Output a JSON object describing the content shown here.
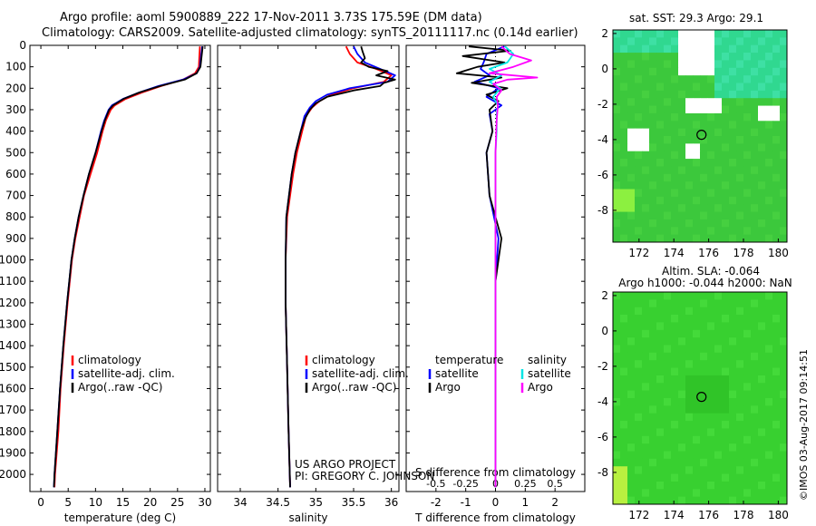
{
  "title": {
    "line1": "Argo profile: aoml 5900889_222 17-Nov-2011 3.73S 175.59E (DM data)",
    "line2": "Climatology: CARS2009. Satellite-adjusted climatology: synTS_20111117.nc (0.14d earlier)"
  },
  "project": {
    "line1": "US ARGO PROJECT",
    "line2": "PI: GREGORY C. JOHNSON"
  },
  "footer_stamp": "©IMOS 03-Aug-2017 09:14:51",
  "colors": {
    "climatology": "#ff0000",
    "satellite": "#0000ff",
    "argo": "#000000",
    "sal_satellite": "#00e5e5",
    "sal_argo": "#ff00ff"
  },
  "chart_data": [
    {
      "id": "temperature",
      "type": "line",
      "xlabel": "temperature (deg C)",
      "ylabel": "",
      "xlim": [
        -2,
        31
      ],
      "ylim": [
        2080,
        0
      ],
      "xticks": [
        0,
        5,
        10,
        15,
        20,
        25,
        30
      ],
      "yticks": [
        0,
        100,
        200,
        300,
        400,
        500,
        600,
        700,
        800,
        900,
        1000,
        1100,
        1200,
        1300,
        1400,
        1500,
        1600,
        1700,
        1800,
        1900,
        2000
      ],
      "legend": [
        "climatology",
        "satellite-adj. clim.",
        "Argo(..raw -QC)"
      ],
      "series": [
        {
          "name": "climatology",
          "color": "#ff0000",
          "depth": [
            5,
            50,
            100,
            130,
            160,
            190,
            220,
            250,
            280,
            300,
            350,
            400,
            500,
            600,
            700,
            800,
            900,
            1000,
            1200,
            1400,
            1600,
            1800,
            2000,
            2060
          ],
          "values": [
            29.1,
            29.0,
            28.9,
            28.2,
            26,
            22,
            18.5,
            15.5,
            13.5,
            12.8,
            11.9,
            11.3,
            10.3,
            9.1,
            7.9,
            7.1,
            6.3,
            5.7,
            4.9,
            4.2,
            3.6,
            3.2,
            2.6,
            2.5
          ]
        },
        {
          "name": "satellite-adj. clim.",
          "color": "#0000ff",
          "depth": [
            5,
            50,
            100,
            130,
            160,
            190,
            220,
            250,
            280,
            300,
            350,
            400,
            500,
            600,
            700,
            800,
            900,
            1000,
            1200,
            1400,
            1600,
            1800,
            2000,
            2060
          ],
          "values": [
            29.5,
            29.3,
            29.1,
            28.5,
            26,
            21.5,
            18,
            15,
            13.0,
            12.4,
            11.6,
            11.0,
            10.0,
            8.8,
            7.8,
            6.9,
            6.2,
            5.6,
            4.8,
            4.1,
            3.5,
            3.0,
            2.5,
            2.4
          ]
        },
        {
          "name": "Argo(..raw -QC)",
          "color": "#000000",
          "depth": [
            5,
            50,
            100,
            130,
            160,
            190,
            220,
            250,
            280,
            300,
            350,
            400,
            500,
            600,
            700,
            800,
            900,
            1000,
            1200,
            1400,
            1600,
            1800,
            2000,
            2060
          ],
          "values": [
            29.6,
            29.4,
            29.2,
            28.5,
            26.3,
            21.8,
            18,
            15.1,
            13.2,
            12.5,
            11.7,
            11.1,
            10.0,
            8.8,
            7.8,
            6.9,
            6.2,
            5.6,
            4.8,
            4.1,
            3.5,
            3.0,
            2.5,
            2.4
          ]
        }
      ]
    },
    {
      "id": "salinity",
      "type": "line",
      "xlabel": "salinity",
      "ylabel": "",
      "xlim": [
        33.7,
        36.1
      ],
      "ylim": [
        2080,
        0
      ],
      "xticks": [
        34,
        34.5,
        35,
        35.5,
        36
      ],
      "legend": [
        "climatology",
        "satellite-adj. clim.",
        "Argo(..raw -QC)"
      ],
      "series": [
        {
          "name": "climatology",
          "color": "#ff0000",
          "depth": [
            5,
            40,
            80,
            110,
            140,
            170,
            200,
            230,
            260,
            290,
            330,
            400,
            500,
            600,
            800,
            1000,
            1200,
            1500,
            1800,
            2060
          ],
          "values": [
            35.4,
            35.45,
            35.55,
            35.8,
            36.0,
            35.9,
            35.5,
            35.2,
            35.05,
            34.95,
            34.87,
            34.82,
            34.75,
            34.7,
            34.62,
            34.6,
            34.6,
            34.62,
            34.64,
            34.66
          ]
        },
        {
          "name": "satellite-adj. clim.",
          "color": "#0000ff",
          "depth": [
            5,
            40,
            80,
            110,
            140,
            170,
            200,
            230,
            260,
            290,
            330,
            400,
            500,
            600,
            800,
            1000,
            1200,
            1500,
            1800,
            2060
          ],
          "values": [
            35.5,
            35.55,
            35.65,
            35.85,
            36.05,
            35.95,
            35.45,
            35.15,
            35.0,
            34.92,
            34.85,
            34.8,
            34.73,
            34.68,
            34.61,
            34.6,
            34.6,
            34.62,
            34.64,
            34.66
          ]
        },
        {
          "name": "Argo(..raw -QC)",
          "color": "#000000",
          "depth": [
            5,
            30,
            60,
            80,
            100,
            120,
            140,
            160,
            175,
            190,
            210,
            240,
            270,
            300,
            340,
            400,
            500,
            600,
            800,
            1000,
            1200,
            1500,
            1800,
            2060
          ],
          "values": [
            35.6,
            35.62,
            35.65,
            35.6,
            35.7,
            35.95,
            35.8,
            36.05,
            35.9,
            35.85,
            35.5,
            35.15,
            35.0,
            34.92,
            34.86,
            34.8,
            34.73,
            34.68,
            34.61,
            34.6,
            34.6,
            34.62,
            34.64,
            34.66
          ]
        }
      ]
    },
    {
      "id": "difference",
      "type": "line",
      "top_xlabel": "S difference from climatology",
      "xlabel": "T difference from climatology",
      "xlim": [
        -3,
        3
      ],
      "ylim": [
        2080,
        0
      ],
      "xticks": [
        -2,
        -1,
        0,
        1,
        2
      ],
      "top_xticks": [
        -0.5,
        -0.25,
        0,
        0.25,
        0.5
      ],
      "legend_temperature": {
        "title": "temperature",
        "items": [
          "satellite",
          "Argo"
        ]
      },
      "legend_salinity": {
        "title": "salinity",
        "items": [
          "satellite",
          "Argo"
        ]
      },
      "series": [
        {
          "name": "T satellite",
          "color": "#0000ff",
          "depth": [
            5,
            40,
            80,
            110,
            140,
            170,
            200,
            240,
            280,
            320,
            400,
            500,
            700,
            900,
            1100,
            1400,
            1700,
            2060
          ],
          "values": [
            0.3,
            -0.3,
            -0.4,
            -0.5,
            -0.2,
            -0.7,
            0.1,
            -0.3,
            0.2,
            -0.2,
            -0.1,
            -0.3,
            -0.2,
            0.1,
            0,
            0,
            0,
            0
          ]
        },
        {
          "name": "T Argo",
          "color": "#000000",
          "depth": [
            5,
            25,
            50,
            80,
            100,
            130,
            150,
            175,
            200,
            230,
            260,
            300,
            400,
            500,
            700,
            900,
            1000,
            1100,
            1400,
            1700,
            2060
          ],
          "values": [
            -0.9,
            0.5,
            -1.1,
            0.3,
            -0.6,
            -1.3,
            0.2,
            -0.8,
            0.4,
            -0.3,
            0.1,
            -0.2,
            -0.1,
            -0.3,
            -0.2,
            0.2,
            0.1,
            0,
            0,
            0,
            0
          ]
        },
        {
          "name": "S satellite",
          "color": "#00e5e5",
          "depth": [
            5,
            40,
            80,
            110,
            140,
            170,
            200,
            240,
            280,
            320,
            400,
            500,
            700,
            900,
            1100,
            1400,
            1700,
            2060
          ],
          "values": [
            0.08,
            0.15,
            0.1,
            -0.05,
            0.05,
            -0.05,
            0.04,
            -0.02,
            0.02,
            0.01,
            0.01,
            0.0,
            0.0,
            0.0,
            0.0,
            0.0,
            0.0,
            0.0
          ]
        },
        {
          "name": "S Argo",
          "color": "#ff00ff",
          "depth": [
            5,
            40,
            70,
            100,
            130,
            150,
            160,
            180,
            210,
            240,
            280,
            350,
            500,
            800,
            1100,
            1500,
            2060
          ],
          "values": [
            0.05,
            0.12,
            0.3,
            0.15,
            -0.05,
            0.35,
            0.1,
            -0.02,
            0.05,
            0.01,
            0.02,
            0.01,
            0.0,
            0.0,
            0.0,
            0.0,
            0.0
          ]
        }
      ]
    },
    {
      "id": "sst_map",
      "type": "heatmap",
      "title": "sat. SST: 29.3  Argo: 29.1",
      "xlim": [
        170.5,
        180.5
      ],
      "ylim": [
        -9.8,
        2.2
      ],
      "xticks": [
        172,
        174,
        176,
        178,
        180
      ],
      "yticks": [
        2,
        0,
        -2,
        -4,
        -6,
        -8
      ],
      "argo_position": [
        175.59,
        -3.73
      ]
    },
    {
      "id": "sla_map",
      "type": "heatmap",
      "title_line1": "Altim. SLA: -0.064",
      "title_line2": "Argo h1000: -0.044 h2000: NaN",
      "xlim": [
        170.5,
        180.5
      ],
      "ylim": [
        -9.8,
        2.2
      ],
      "xticks": [
        172,
        174,
        176,
        178,
        180
      ],
      "yticks": [
        2,
        0,
        -2,
        -4,
        -6,
        -8
      ],
      "argo_position": [
        175.59,
        -3.73
      ]
    }
  ]
}
